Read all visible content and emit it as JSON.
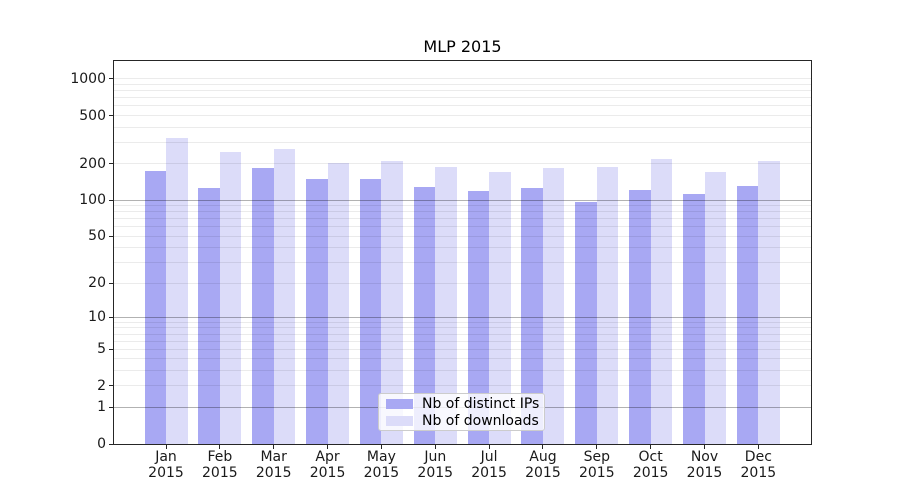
{
  "title": "MLP 2015",
  "legend": {
    "items": [
      {
        "label": "Nb of distinct IPs",
        "color": "#a8a8f3"
      },
      {
        "label": "Nb of downloads",
        "color": "#dcdcf9"
      }
    ]
  },
  "chart_data": {
    "type": "bar",
    "title": "MLP 2015",
    "y_scale": "log10(value+1)",
    "grid": "on",
    "legend_position": "lower center",
    "ylim": [
      0,
      1400
    ],
    "y_tick_values": [
      1000,
      500,
      200,
      100,
      50,
      20,
      10,
      5,
      2,
      1,
      0
    ],
    "y_tick_labels": [
      "1000",
      "500",
      "200",
      "100",
      "50",
      "20",
      "10",
      "5",
      "2",
      "1",
      "0"
    ],
    "y_dark_gridline_values": [
      1,
      10,
      100
    ],
    "y_minor_gridlines": [
      3,
      4,
      6,
      7,
      8,
      9,
      30,
      40,
      60,
      70,
      80,
      90,
      300,
      400,
      600,
      700,
      800,
      900
    ],
    "x_ticks": [
      {
        "line1": "Jan",
        "line2": "2015"
      },
      {
        "line1": "Feb",
        "line2": "2015"
      },
      {
        "line1": "Mar",
        "line2": "2015"
      },
      {
        "line1": "Apr",
        "line2": "2015"
      },
      {
        "line1": "May",
        "line2": "2015"
      },
      {
        "line1": "Jun",
        "line2": "2015"
      },
      {
        "line1": "Jul",
        "line2": "2015"
      },
      {
        "line1": "Aug",
        "line2": "2015"
      },
      {
        "line1": "Sep",
        "line2": "2015"
      },
      {
        "line1": "Oct",
        "line2": "2015"
      },
      {
        "line1": "Nov",
        "line2": "2015"
      },
      {
        "line1": "Dec",
        "line2": "2015"
      }
    ],
    "series": [
      {
        "name": "Nb of distinct IPs",
        "color": "#a8a8f3",
        "values": [
          173,
          125,
          185,
          151,
          150,
          128,
          120,
          125,
          96,
          122,
          113,
          130
        ]
      },
      {
        "name": "Nb of downloads",
        "color": "#dcdcf9",
        "values": [
          325,
          250,
          265,
          204,
          212,
          189,
          170,
          184,
          187,
          219,
          170,
          213
        ]
      }
    ]
  }
}
